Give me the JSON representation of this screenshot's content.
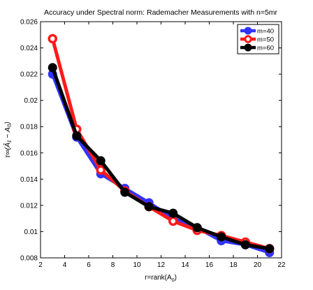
{
  "chart_data": {
    "type": "line",
    "title": "Accuracy under Spectral norm: Rademacher Measurements with n=5mr",
    "xlabel": "r=rank(A",
    "xlabel_sub": "0",
    "xlabel_tail": ")",
    "ylabel": "τ∞(Â₁ − A₀)",
    "xlim": [
      2,
      22
    ],
    "ylim": [
      0.008,
      0.026
    ],
    "xticks": [
      "2",
      "4",
      "6",
      "8",
      "10",
      "12",
      "14",
      "16",
      "18",
      "20",
      "22"
    ],
    "yticks": [
      "0.008",
      "0.01",
      "0.012",
      "0.014",
      "0.016",
      "0.018",
      "0.02",
      "0.022",
      "0.024",
      "0.026"
    ],
    "x": [
      3,
      5,
      7,
      9,
      11,
      13,
      15,
      17,
      19,
      21
    ],
    "legend_position": "top-right",
    "series": [
      {
        "name": "m=40",
        "color": "#3333ff",
        "marker": "filled-circle",
        "values": [
          0.022,
          0.0172,
          0.0144,
          0.0133,
          0.0122,
          0.011,
          0.0103,
          0.0093,
          0.009,
          0.0084
        ]
      },
      {
        "name": "m=50",
        "color": "#ff1a1a",
        "marker": "open-circle",
        "values": [
          0.0247,
          0.0178,
          0.0147,
          0.0131,
          0.0119,
          0.0108,
          0.0101,
          0.0097,
          0.0092,
          0.0087
        ]
      },
      {
        "name": "m=60",
        "color": "#000000",
        "marker": "filled-circle",
        "values": [
          0.0225,
          0.0173,
          0.0154,
          0.013,
          0.0119,
          0.0114,
          0.0103,
          0.0096,
          0.009,
          0.0087
        ]
      }
    ]
  }
}
